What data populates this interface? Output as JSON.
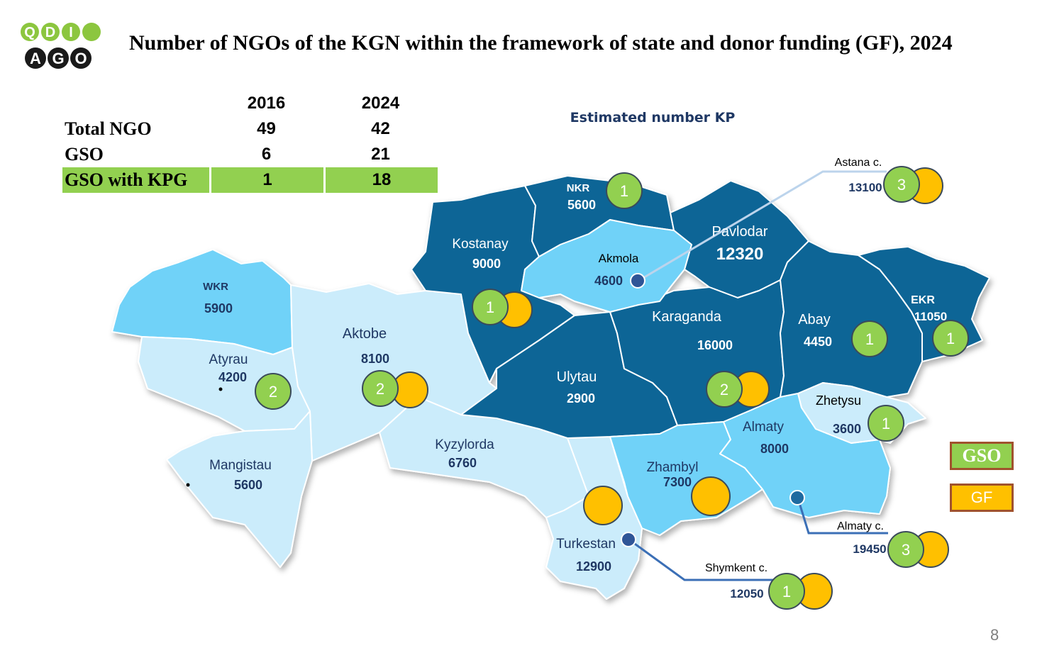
{
  "logo": {
    "line1": "QDI",
    "line2": "AGO"
  },
  "title": "Number of NGOs of the KGN within the framework of state and donor funding (GF), 2024",
  "stats_table": {
    "years": [
      "2016",
      "2024"
    ],
    "rows": [
      {
        "label": "Total NGO",
        "values": [
          "49",
          "42"
        ]
      },
      {
        "label": "GSO",
        "values": [
          "6",
          "21"
        ]
      },
      {
        "label": "GSO with KPG",
        "values": [
          "1",
          "18"
        ]
      }
    ]
  },
  "map_subtitle": "Estimated number KP",
  "colors": {
    "gso": "#92d050",
    "gf": "#ffc000",
    "dark_region": "#0b6596",
    "mid_region": "#6fd2f8",
    "light_region": "#cbecfb"
  },
  "regions": [
    {
      "id": "wkr",
      "name": "WKR",
      "kp": "5900",
      "gso": null,
      "gf": false
    },
    {
      "id": "atyrau",
      "name": "Atyrau",
      "kp": "4200",
      "gso": "2",
      "gf": false
    },
    {
      "id": "aktobe",
      "name": "Aktobe",
      "kp": "8100",
      "gso": "2",
      "gf": true
    },
    {
      "id": "mangistau",
      "name": "Mangistau",
      "kp": "5600",
      "gso": null,
      "gf": false
    },
    {
      "id": "kostanay",
      "name": "Kostanay",
      "kp": "9000",
      "gso": "1",
      "gf": true
    },
    {
      "id": "nkr",
      "name": "NKR",
      "kp": "5600",
      "gso": "1",
      "gf": false
    },
    {
      "id": "akmola",
      "name": "Akmola",
      "kp": "4600",
      "gso": null,
      "gf": false
    },
    {
      "id": "pavlodar",
      "name": "Pavlodar",
      "kp": "12320",
      "gso": null,
      "gf": false
    },
    {
      "id": "karaganda",
      "name": "Karaganda",
      "kp": "16000",
      "gso": "2",
      "gf": true
    },
    {
      "id": "ulytau",
      "name": "Ulytau",
      "kp": "2900",
      "gso": null,
      "gf": false
    },
    {
      "id": "abay",
      "name": "Abay",
      "kp": "4450",
      "gso": "1",
      "gf": false
    },
    {
      "id": "ekr",
      "name": "EKR",
      "kp": "11050",
      "gso": "1",
      "gf": false
    },
    {
      "id": "kyzylorda",
      "name": "Kyzylorda",
      "kp": "6760",
      "gso": null,
      "gf": false
    },
    {
      "id": "turkestan",
      "name": "Turkestan",
      "kp": "12900",
      "gso": null,
      "gf": true
    },
    {
      "id": "zhambyl",
      "name": "Zhambyl",
      "kp": "7300",
      "gso": null,
      "gf": true
    },
    {
      "id": "almaty",
      "name": "Almaty",
      "kp": "8000",
      "gso": null,
      "gf": false
    },
    {
      "id": "zhetysu",
      "name": "Zhetysu",
      "kp": "3600",
      "gso": "1",
      "gf": false
    }
  ],
  "cities": [
    {
      "id": "astana",
      "name": "Astana c.",
      "kp": "13100",
      "gso": "3",
      "gf": true
    },
    {
      "id": "almaty_city",
      "name": "Almaty c.",
      "kp": "19450",
      "gso": "3",
      "gf": true
    },
    {
      "id": "shymkent",
      "name": "Shymkent c.",
      "kp": "12050",
      "gso": "1",
      "gf": true
    }
  ],
  "legend": {
    "gso": "GSO",
    "gf": "GF"
  },
  "page_number": "8"
}
